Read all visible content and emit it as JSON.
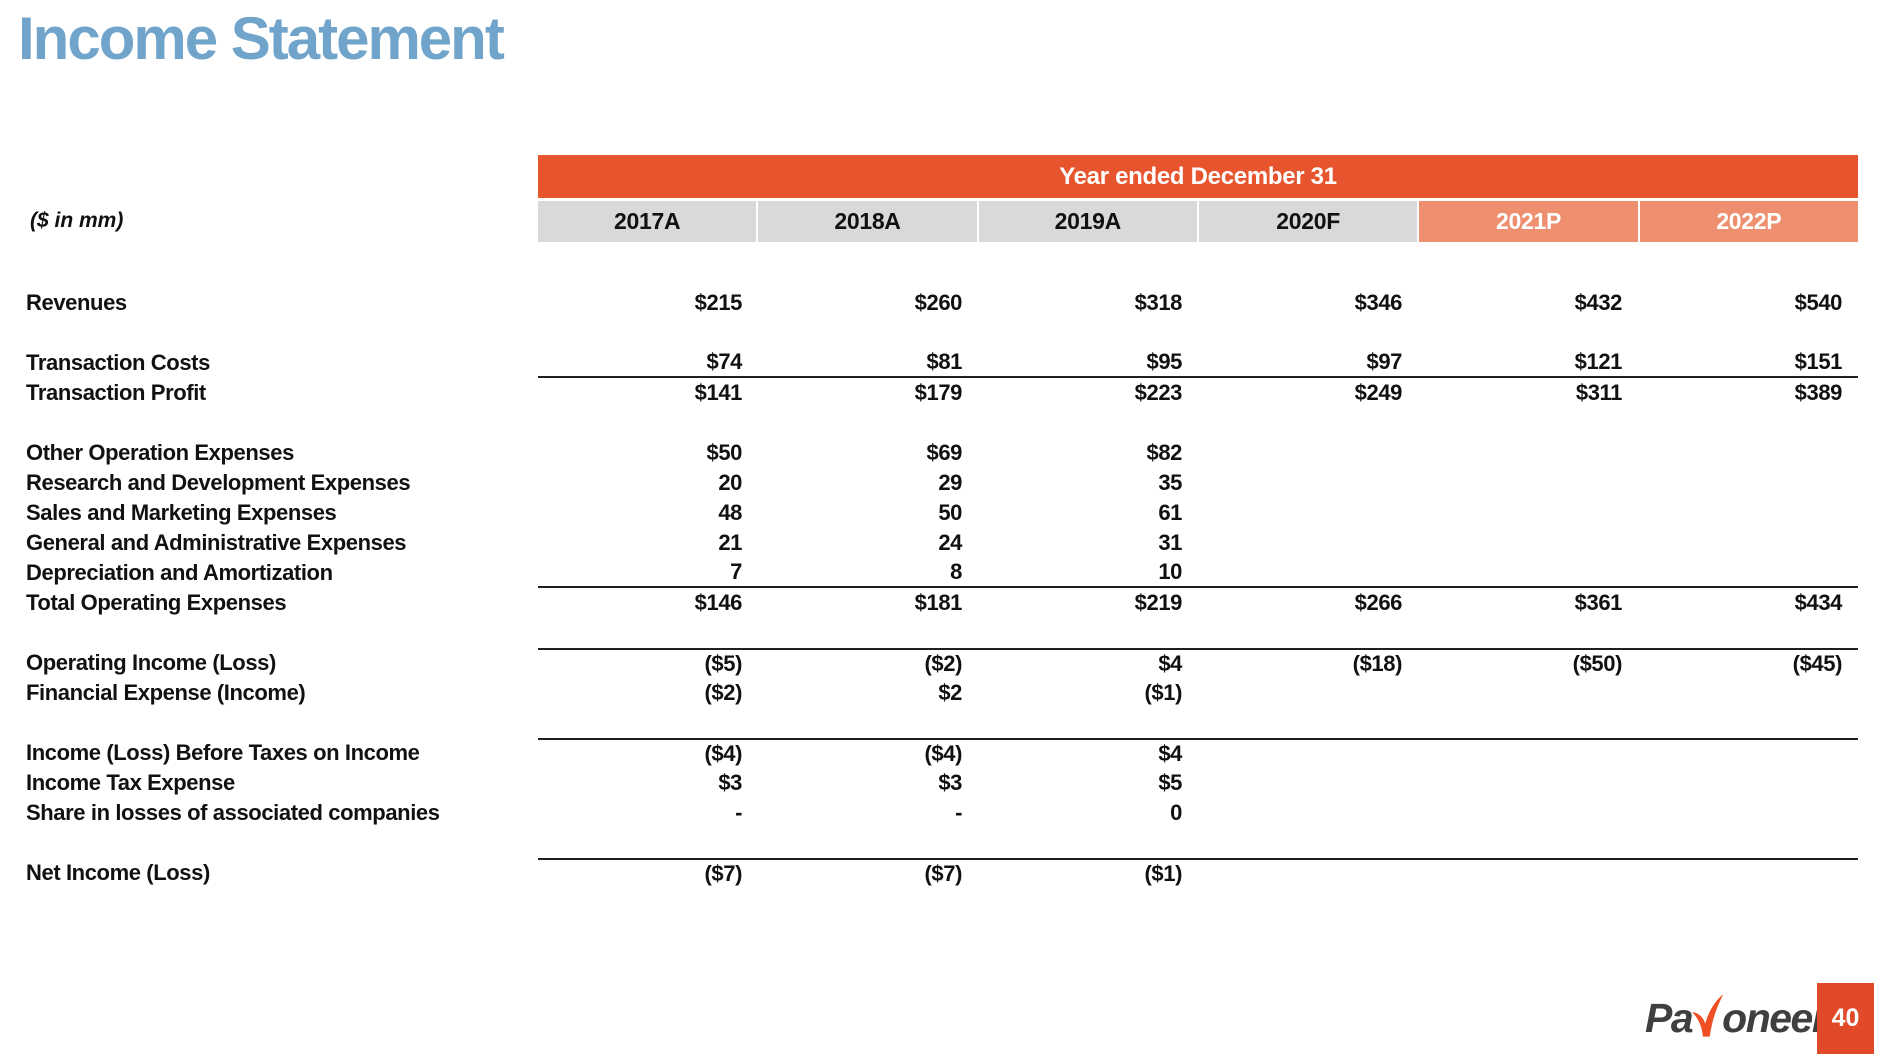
{
  "page": {
    "title": "Income Statement",
    "units_label": "($ in mm)",
    "page_number": "40"
  },
  "brand": {
    "logo_text_pre": "Pa",
    "logo_swoosh_icon": "payoneer-y-swoosh",
    "logo_text_post": "oneer",
    "registered_mark": "®"
  },
  "colors": {
    "title_blue": "#71A4CB",
    "header_orange": "#E7552E",
    "projection_salmon": "#EE9070",
    "header_gray": "#D9D9D9",
    "page_box_orange": "#E04A28",
    "logo_dark": "#3F3F41",
    "logo_orange": "#F04E23",
    "rule_color": "#1F1F1F"
  },
  "table": {
    "banner": "Year ended December 31",
    "columns": [
      {
        "label": "2017A",
        "highlight": false
      },
      {
        "label": "2018A",
        "highlight": false
      },
      {
        "label": "2019A",
        "highlight": false
      },
      {
        "label": "2020F",
        "highlight": false
      },
      {
        "label": "2021P",
        "highlight": true
      },
      {
        "label": "2022P",
        "highlight": true
      }
    ],
    "rows": [
      {
        "label": "Revenues",
        "values": [
          "$215",
          "$260",
          "$318",
          "$346",
          "$432",
          "$540"
        ],
        "gap_before": false,
        "rule_above": false,
        "rule_below": false
      },
      {
        "label": "Transaction Costs",
        "values": [
          "$74",
          "$81",
          "$95",
          "$97",
          "$121",
          "$151"
        ],
        "gap_before": true,
        "rule_above": false,
        "rule_below": true
      },
      {
        "label": "Transaction Profit",
        "values": [
          "$141",
          "$179",
          "$223",
          "$249",
          "$311",
          "$389"
        ],
        "gap_before": false,
        "rule_above": false,
        "rule_below": false
      },
      {
        "label": "Other Operation Expenses",
        "values": [
          "$50",
          "$69",
          "$82",
          "",
          "",
          ""
        ],
        "gap_before": true,
        "rule_above": false,
        "rule_below": false
      },
      {
        "label": "Research and Development Expenses",
        "values": [
          "20",
          "29",
          "35",
          "",
          "",
          ""
        ],
        "gap_before": false,
        "rule_above": false,
        "rule_below": false
      },
      {
        "label": "Sales and Marketing Expenses",
        "values": [
          "48",
          "50",
          "61",
          "",
          "",
          ""
        ],
        "gap_before": false,
        "rule_above": false,
        "rule_below": false
      },
      {
        "label": "General and Administrative Expenses",
        "values": [
          "21",
          "24",
          "31",
          "",
          "",
          ""
        ],
        "gap_before": false,
        "rule_above": false,
        "rule_below": false
      },
      {
        "label": "Depreciation and Amortization",
        "values": [
          "7",
          "8",
          "10",
          "",
          "",
          ""
        ],
        "gap_before": false,
        "rule_above": false,
        "rule_below": true
      },
      {
        "label": "Total Operating Expenses",
        "values": [
          "$146",
          "$181",
          "$219",
          "$266",
          "$361",
          "$434"
        ],
        "gap_before": false,
        "rule_above": false,
        "rule_below": false
      },
      {
        "label": "Operating Income (Loss)",
        "values": [
          "($5)",
          "($2)",
          "$4",
          "($18)",
          "($50)",
          "($45)"
        ],
        "gap_before": true,
        "rule_above": true,
        "rule_below": false
      },
      {
        "label": "Financial Expense (Income)",
        "values": [
          "($2)",
          "$2",
          "($1)",
          "",
          "",
          ""
        ],
        "gap_before": false,
        "rule_above": false,
        "rule_below": false
      },
      {
        "label": "Income (Loss) Before Taxes on Income",
        "values": [
          "($4)",
          "($4)",
          "$4",
          "",
          "",
          ""
        ],
        "gap_before": true,
        "rule_above": true,
        "rule_below": false
      },
      {
        "label": "Income Tax Expense",
        "values": [
          "$3",
          "$3",
          "$5",
          "",
          "",
          ""
        ],
        "gap_before": false,
        "rule_above": false,
        "rule_below": false
      },
      {
        "label": "Share in losses of associated companies",
        "values": [
          "-",
          "-",
          "0",
          "",
          "",
          ""
        ],
        "gap_before": false,
        "rule_above": false,
        "rule_below": false
      },
      {
        "label": "Net Income (Loss)",
        "values": [
          "($7)",
          "($7)",
          "($1)",
          "",
          "",
          ""
        ],
        "gap_before": true,
        "rule_above": true,
        "rule_below": false
      }
    ]
  }
}
